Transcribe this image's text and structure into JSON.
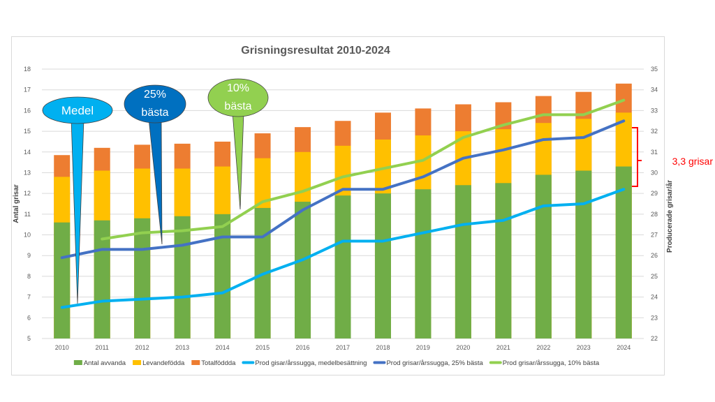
{
  "chart_data": {
    "type": "bar+line",
    "title": "Grisningsresultat 2010-2024",
    "ylabel": "Antal grisar",
    "y2label": "Producerade grisar/år",
    "ylim": [
      5,
      18
    ],
    "y2lim": [
      22,
      35
    ],
    "yticks": [
      5,
      6,
      7,
      8,
      9,
      10,
      11,
      12,
      13,
      14,
      15,
      16,
      17,
      18
    ],
    "y2ticks": [
      22,
      23,
      24,
      25,
      26,
      27,
      28,
      29,
      30,
      31,
      32,
      33,
      34,
      35
    ],
    "grid": true,
    "legend": "bottom",
    "categories": [
      "2010",
      "2011",
      "2012",
      "2013",
      "2014",
      "2015",
      "2016",
      "2017",
      "2018",
      "2019",
      "2020",
      "2021",
      "2022",
      "2023",
      "2024"
    ],
    "bars": [
      {
        "name": "Antal avvanda",
        "color": "#70ad47",
        "values": [
          10.6,
          10.7,
          10.8,
          10.9,
          11.0,
          11.3,
          11.6,
          11.9,
          12.0,
          12.2,
          12.4,
          12.5,
          12.9,
          13.1,
          13.3
        ]
      },
      {
        "name": "Levandefödda",
        "color": "#ffc000",
        "values": [
          12.8,
          13.1,
          13.2,
          13.2,
          13.3,
          13.7,
          14.0,
          14.3,
          14.6,
          14.8,
          15.0,
          15.1,
          15.4,
          15.6,
          15.9
        ]
      },
      {
        "name": "Totalföddda",
        "color": "#ed7d31",
        "values": [
          13.85,
          14.2,
          14.35,
          14.4,
          14.5,
          14.9,
          15.2,
          15.5,
          15.9,
          16.1,
          16.3,
          16.4,
          16.7,
          16.9,
          17.3
        ]
      }
    ],
    "lines": [
      {
        "name": "Prod gisar/årssugga, medelbesättning",
        "color": "#00b0f0",
        "axis": "right",
        "values": [
          23.5,
          23.8,
          23.9,
          24.0,
          24.2,
          25.1,
          25.8,
          26.7,
          26.7,
          27.1,
          27.5,
          27.7,
          28.4,
          28.5,
          29.2
        ]
      },
      {
        "name": "Prod grisar/årssugga, 25% bästa",
        "color": "#4472c4",
        "axis": "right",
        "values": [
          25.9,
          26.3,
          26.3,
          26.5,
          26.9,
          26.9,
          28.2,
          29.2,
          29.2,
          29.8,
          30.7,
          31.1,
          31.6,
          31.7,
          32.5
        ]
      },
      {
        "name": "Prod grisar/årssugga, 10% bästa",
        "color": "#92d050",
        "axis": "right",
        "values": [
          null,
          26.8,
          27.1,
          27.2,
          27.4,
          28.6,
          29.1,
          29.8,
          30.2,
          30.6,
          31.7,
          32.3,
          32.8,
          32.8,
          33.5
        ]
      }
    ],
    "annotations": {
      "callouts": [
        {
          "text": [
            "Medel"
          ],
          "color": "#00b0f0"
        },
        {
          "text": [
            "25%",
            "bästa"
          ],
          "color": "#0070c0"
        },
        {
          "text": [
            "10%",
            "bästa"
          ],
          "color": "#92d050"
        }
      ],
      "bracket_label": "3,3 grisar",
      "bracket_color": "#ff0000"
    }
  }
}
